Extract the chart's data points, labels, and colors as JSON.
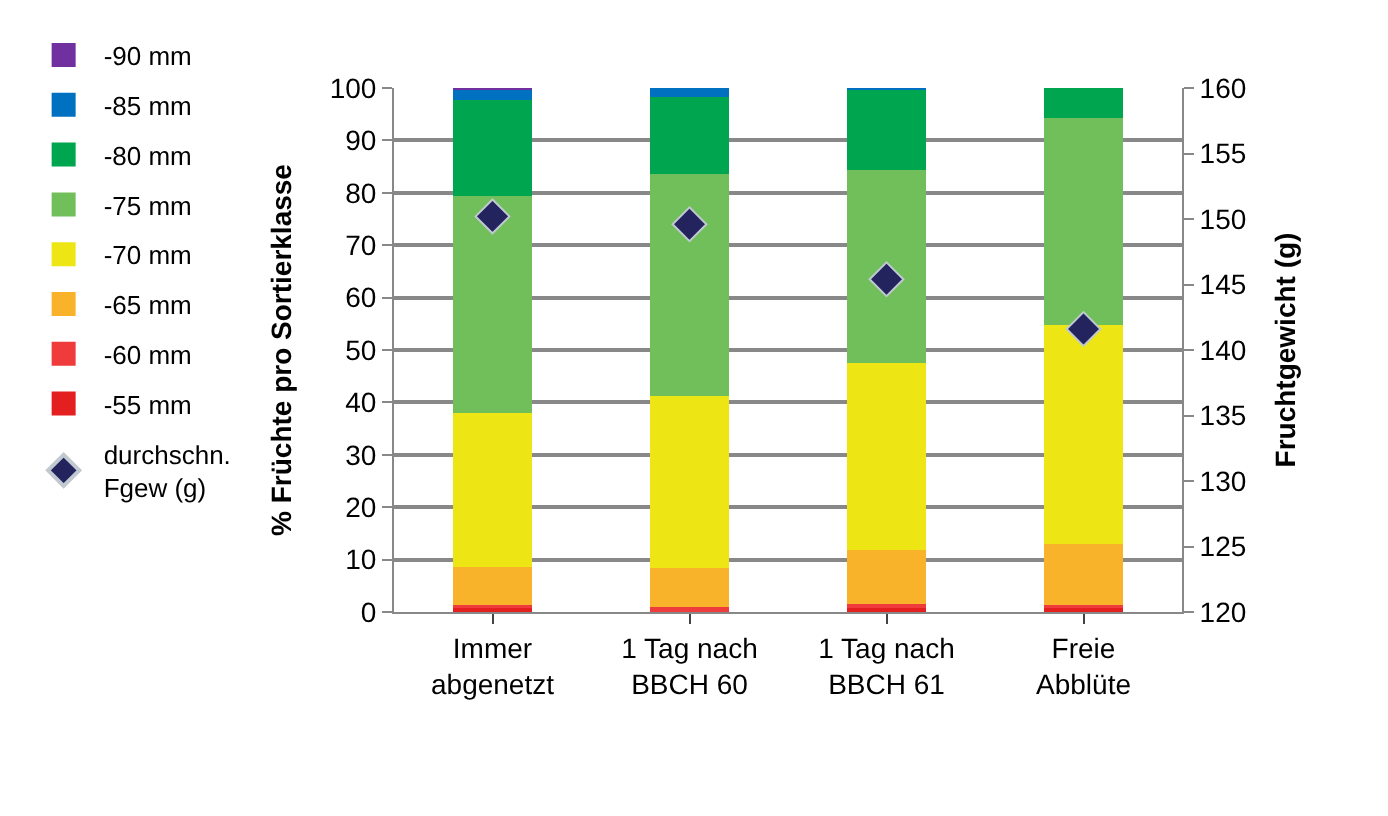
{
  "chart_data": {
    "type": "bar",
    "stacked": true,
    "ylabel": "% Früchte pro Sortierklasse",
    "y2label": "Fruchtgewicht (g)",
    "categories": [
      "Immer abgenetzt",
      "1 Tag nach BBCH 60",
      "1 Tag nach BBCH 61",
      "Freie Abblüte"
    ],
    "series": [
      {
        "name": "-55 mm",
        "color": "#e3201f",
        "values": [
          0.8,
          0.3,
          0.9,
          0.8
        ]
      },
      {
        "name": "-60 mm",
        "color": "#ef3b3b",
        "values": [
          0.5,
          0.7,
          0.7,
          0.5
        ]
      },
      {
        "name": "-65 mm",
        "color": "#f9b32a",
        "values": [
          7.3,
          7.4,
          10.2,
          11.6
        ]
      },
      {
        "name": "-70 mm",
        "color": "#ede614",
        "values": [
          29.4,
          32.8,
          35.8,
          41.8
        ]
      },
      {
        "name": "-75 mm",
        "color": "#70bf5a",
        "values": [
          41.3,
          42.4,
          36.8,
          39.6
        ]
      },
      {
        "name": "-80 mm",
        "color": "#00a550",
        "values": [
          18.5,
          14.7,
          15.3,
          5.7
        ]
      },
      {
        "name": "-85 mm",
        "color": "#0070c0",
        "values": [
          1.9,
          1.7,
          0.3,
          0
        ]
      },
      {
        "name": "-90 mm",
        "color": "#7030a0",
        "values": [
          0.3,
          0,
          0,
          0
        ]
      },
      {
        "name": "durchschn. Fgew (g)",
        "type": "scatter",
        "axis": "y2",
        "marker": "diamond",
        "color": "#23235e",
        "values": [
          150.2,
          149.6,
          145.4,
          141.6
        ]
      }
    ],
    "ylim": [
      0,
      100
    ],
    "yticks": [
      0,
      10,
      20,
      30,
      40,
      50,
      60,
      70,
      80,
      90,
      100
    ],
    "y2lim": [
      120,
      160
    ],
    "y2ticks": [
      120,
      125,
      130,
      135,
      140,
      145,
      150,
      155,
      160
    ],
    "grid": "y",
    "legend": "left"
  }
}
